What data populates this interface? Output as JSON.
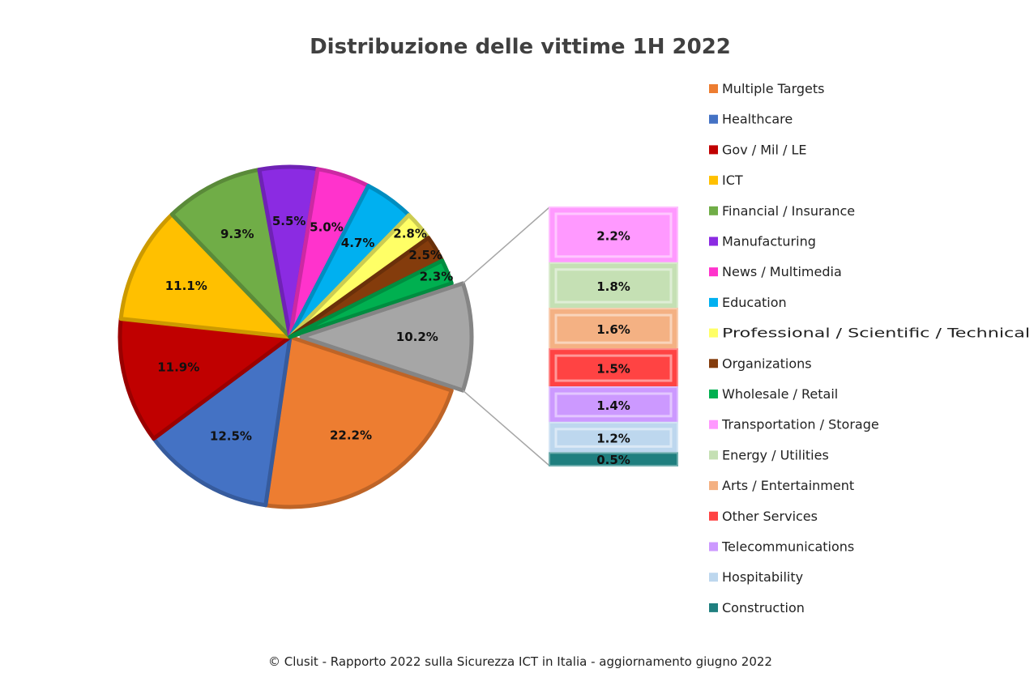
{
  "chart_data": {
    "type": "pie",
    "subtype": "bar-of-pie",
    "title": "Distribuzione delle vittime 1H 2022",
    "legend_position": "right",
    "categories": [
      "Multiple Targets",
      "Healthcare",
      "Gov / Mil / LE",
      "ICT",
      "Financial / Insurance",
      "Manufacturing",
      "News / Multimedia",
      "Education",
      "Professional / Scientific / Technical",
      "Organizations",
      "Wholesale / Retail",
      "Transportation / Storage",
      "Energy / Utilities",
      "Arts / Entertainment",
      "Other Services",
      "Telecommunications",
      "Hospitability",
      "Construction"
    ],
    "values": [
      22.2,
      12.5,
      11.9,
      11.1,
      9.3,
      5.5,
      5.0,
      4.7,
      2.8,
      2.5,
      2.3,
      2.2,
      1.8,
      1.6,
      1.5,
      1.4,
      1.2,
      0.5
    ],
    "labels": [
      "22.2%",
      "12.5%",
      "11.9%",
      "11.1%",
      "9.3%",
      "5.5%",
      "5.0%",
      "4.7%",
      "2.8%",
      "2.5%",
      "2.3%",
      "2.2%",
      "1.8%",
      "1.6%",
      "1.5%",
      "1.4%",
      "1.2%",
      "0.5%"
    ],
    "colors": [
      "#ED7D31",
      "#4472C4",
      "#C00000",
      "#FFC000",
      "#70AD47",
      "#8B2BE2",
      "#FF33CC",
      "#00B0F0",
      "#FFFF66",
      "#843C0C",
      "#00B050",
      "#FF99FF",
      "#C5E0B4",
      "#F4B183",
      "#FF4343",
      "#CC99FF",
      "#BDD7EE",
      "#1F7F7F"
    ],
    "pie_slice_count": 11,
    "other_label": "10.2%",
    "other_value": 10.2,
    "other_color": "#A6A6A6"
  },
  "footer": "© Clusit - Rapporto 2022 sulla Sicurezza ICT in Italia - aggiornamento giugno 2022"
}
